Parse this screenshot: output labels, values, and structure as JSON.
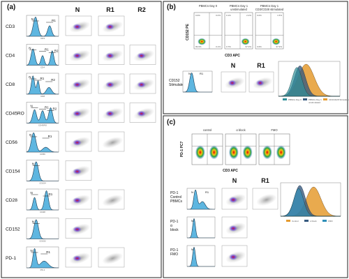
{
  "panel_a": {
    "label": "(a)",
    "columns": [
      "N",
      "R1",
      "R2"
    ],
    "rows": [
      {
        "marker": "CD3",
        "gates": [
          "N",
          "R1"
        ],
        "peaks": [
          [
            0.28,
            0.07,
            1.0
          ],
          [
            0.72,
            0.06,
            0.55
          ]
        ],
        "scatter": [
          true,
          true,
          false
        ]
      },
      {
        "marker": "CD4",
        "gates": [
          "N",
          "R1",
          "R2"
        ],
        "peaks": [
          [
            0.2,
            0.06,
            0.85
          ],
          [
            0.5,
            0.05,
            0.5
          ],
          [
            0.8,
            0.05,
            0.75
          ]
        ],
        "scatter": [
          true,
          true,
          true
        ]
      },
      {
        "marker": "CD8",
        "gates": [
          "N",
          "R1",
          "R2"
        ],
        "peaks": [
          [
            0.2,
            0.05,
            0.95
          ],
          [
            0.36,
            0.04,
            0.7
          ],
          [
            0.7,
            0.08,
            0.35
          ]
        ],
        "scatter": [
          true,
          true,
          true
        ]
      },
      {
        "marker": "CD45RO",
        "gates": [
          "N",
          "R1",
          "R2"
        ],
        "peaks": [
          [
            0.25,
            0.06,
            0.7
          ],
          [
            0.5,
            0.06,
            0.65
          ],
          [
            0.75,
            0.06,
            0.8
          ]
        ],
        "scatter": [
          true,
          true,
          true
        ]
      },
      {
        "marker": "CD56",
        "gates": [
          "N",
          "R1"
        ],
        "peaks": [
          [
            0.22,
            0.07,
            1.0
          ],
          [
            0.6,
            0.1,
            0.25
          ]
        ],
        "scatter": [
          true,
          true,
          false
        ]
      },
      {
        "marker": "CD154",
        "gates": [
          "N"
        ],
        "peaks": [
          [
            0.3,
            0.07,
            1.0
          ]
        ],
        "scatter": [
          true,
          false,
          false
        ]
      },
      {
        "marker": "CD28",
        "gates": [
          "N",
          "R1"
        ],
        "peaks": [
          [
            0.25,
            0.05,
            0.65
          ],
          [
            0.62,
            0.06,
            1.0
          ]
        ],
        "scatter": [
          true,
          true,
          false
        ]
      },
      {
        "marker": "CD152",
        "gates": [
          "N"
        ],
        "peaks": [
          [
            0.3,
            0.07,
            1.0
          ]
        ],
        "scatter": [
          true,
          false,
          false
        ]
      },
      {
        "marker": "PD-1",
        "gates": [
          "N",
          "R1"
        ],
        "peaks": [
          [
            0.25,
            0.05,
            1.0
          ],
          [
            0.55,
            0.12,
            0.35
          ]
        ],
        "scatter": [
          true,
          true,
          false
        ]
      }
    ]
  },
  "panel_b": {
    "label": "(b)",
    "y_axis": "CD152 PE",
    "x_axis": "CD3 APC",
    "plots": [
      {
        "title": "PBMCs Day 0",
        "q_ul": "0.0%",
        "q_ur": "0.0%",
        "q_ll": "99.9%",
        "q_lr": "0.1%"
      },
      {
        "title": "PBMCs Day 1 unstimulated",
        "q_ul": "0.1%",
        "q_ur": "2.2%",
        "q_ll": "0.7%",
        "q_lr": "97.0%"
      },
      {
        "title": "PBMCs Day 1 CD3/CD28 stimulated",
        "q_ul": "0.0%",
        "q_ur": "1.5%",
        "q_ll": "0.6%",
        "q_lr": "97.9%"
      }
    ],
    "stim_label": "CD152 Stimulated",
    "columns": [
      "N",
      "R1"
    ],
    "legend": [
      {
        "label": "PBMCs Day 0",
        "color": "#2f8f98"
      },
      {
        "label": "PBMCs Day 1 unstimulated",
        "color": "#375a7f"
      },
      {
        "label": "CD3/CD28 Stimulated",
        "color": "#e59b2f"
      }
    ]
  },
  "panel_c": {
    "label": "(c)",
    "y_axis": "PD-1 PC7",
    "x_axis": "CD3 APC",
    "plots": [
      {
        "title": "control"
      },
      {
        "title": "α block"
      },
      {
        "title": "FMO"
      }
    ],
    "columns": [
      "N",
      "R1"
    ],
    "rows": [
      {
        "label": [
          "PD-1",
          "Control",
          "PBMCs"
        ]
      },
      {
        "label": [
          "PD-1",
          "α",
          "block"
        ]
      },
      {
        "label": [
          "PD-1",
          "FMO"
        ]
      }
    ],
    "legend": [
      {
        "label": "Control",
        "color": "#e59b2f"
      },
      {
        "label": "α block",
        "color": "#375a7f"
      },
      {
        "label": "FMO",
        "color": "#2f8fb8"
      }
    ]
  }
}
